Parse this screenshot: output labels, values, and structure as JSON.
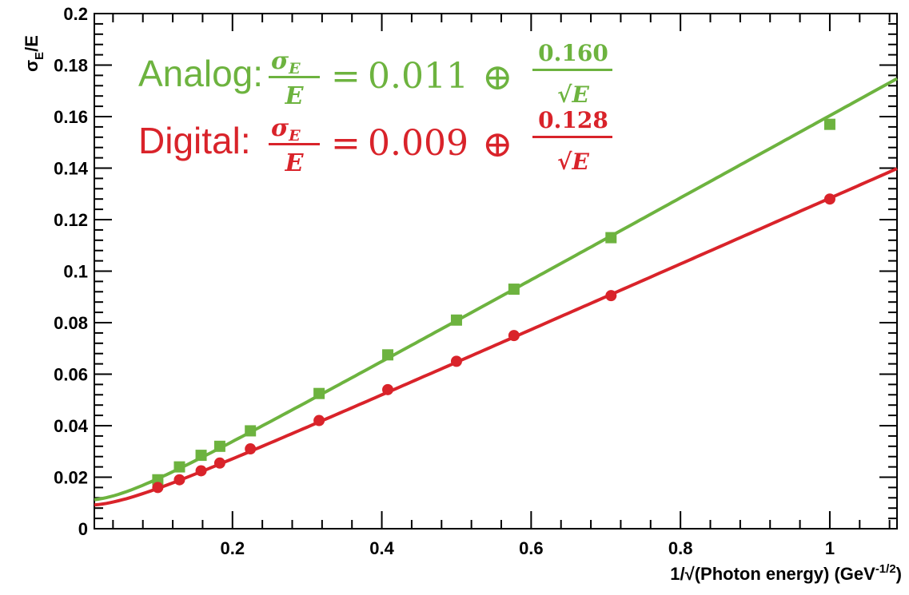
{
  "chart_data": {
    "type": "scatter",
    "xlabel": "1/√(Photon energy) (GeV",
    "xlabel_exponent": "-1/2",
    "xlabel_suffix": ")",
    "ylabel_main": "σ",
    "ylabel_sub": "E",
    "ylabel_suffix": "/E",
    "xlim": [
      0.015,
      1.09
    ],
    "ylim": [
      0,
      0.2
    ],
    "x_ticks": [
      0.2,
      0.4,
      0.6,
      0.8,
      1
    ],
    "x_tick_labels": [
      "0.2",
      "0.4",
      "0.6",
      "0.8",
      "1"
    ],
    "y_ticks": [
      0,
      0.02,
      0.04,
      0.06,
      0.08,
      0.1,
      0.12,
      0.14,
      0.16,
      0.18,
      0.2
    ],
    "y_tick_labels": [
      "0",
      "0.02",
      "0.04",
      "0.06",
      "0.08",
      "0.1",
      "0.12",
      "0.14",
      "0.16",
      "0.18",
      "0.2"
    ],
    "grid": false,
    "series": [
      {
        "name": "Analog",
        "color": "#6db33f",
        "marker": "square",
        "x": [
          0.1,
          0.129,
          0.158,
          0.183,
          0.224,
          0.316,
          0.408,
          0.5,
          0.577,
          0.707,
          1.0
        ],
        "y": [
          0.019,
          0.024,
          0.0285,
          0.032,
          0.038,
          0.0525,
          0.0675,
          0.081,
          0.093,
          0.113,
          0.157
        ],
        "fit": {
          "constant": 0.011,
          "stochastic": 0.16
        }
      },
      {
        "name": "Digital",
        "color": "#d9232a",
        "marker": "circle",
        "x": [
          0.1,
          0.129,
          0.158,
          0.183,
          0.224,
          0.316,
          0.408,
          0.5,
          0.577,
          0.707,
          1.0
        ],
        "y": [
          0.016,
          0.019,
          0.0225,
          0.0255,
          0.031,
          0.042,
          0.054,
          0.065,
          0.075,
          0.0905,
          0.128
        ],
        "fit": {
          "constant": 0.009,
          "stochastic": 0.128
        }
      }
    ],
    "annotations": [
      {
        "label": "Analog:",
        "constant": "0.011",
        "stochastic": "0.160",
        "color": "#6db33f"
      },
      {
        "label": "Digital:",
        "constant": "0.009",
        "stochastic": "0.128",
        "color": "#d9232a"
      }
    ],
    "formula_parts": {
      "sigma": "σ",
      "sub": "E",
      "den": "E",
      "equals": "=",
      "oplus": "⊕",
      "sqrt": "√",
      "sqrt_arg": "E"
    }
  }
}
